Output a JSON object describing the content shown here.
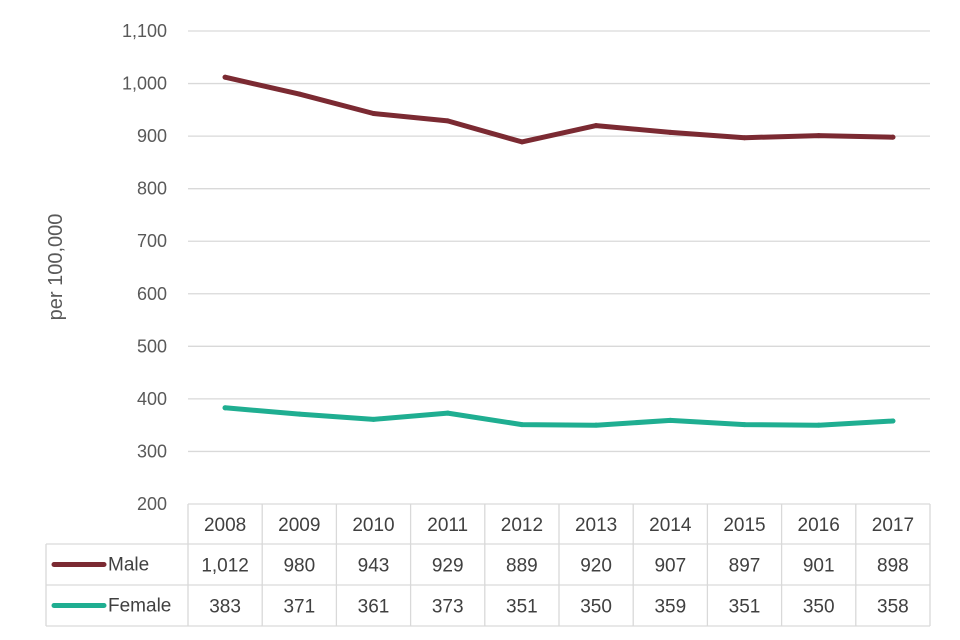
{
  "chart_data": {
    "type": "line",
    "title": "",
    "xlabel": "",
    "ylabel": "per 100,000",
    "ylim": [
      200,
      1100
    ],
    "yticks": [
      200,
      300,
      400,
      500,
      600,
      700,
      800,
      900,
      1000,
      1100
    ],
    "ytick_labels": [
      "200",
      "300",
      "400",
      "500",
      "600",
      "700",
      "800",
      "900",
      "1,000",
      "1,100"
    ],
    "categories": [
      "2008",
      "2009",
      "2010",
      "2011",
      "2012",
      "2013",
      "2014",
      "2015",
      "2016",
      "2017"
    ],
    "grid": "horizontal",
    "legend": "data-table",
    "series": [
      {
        "name": "Male",
        "color": "#7b2a32",
        "values": [
          1012,
          980,
          943,
          929,
          889,
          920,
          907,
          897,
          901,
          898
        ],
        "labels": [
          "1,012",
          "980",
          "943",
          "929",
          "889",
          "920",
          "907",
          "897",
          "901",
          "898"
        ]
      },
      {
        "name": "Female",
        "color": "#1fae91",
        "values": [
          383,
          371,
          361,
          373,
          351,
          350,
          359,
          351,
          350,
          358
        ],
        "labels": [
          "383",
          "371",
          "361",
          "373",
          "351",
          "350",
          "359",
          "351",
          "350",
          "358"
        ]
      }
    ]
  }
}
